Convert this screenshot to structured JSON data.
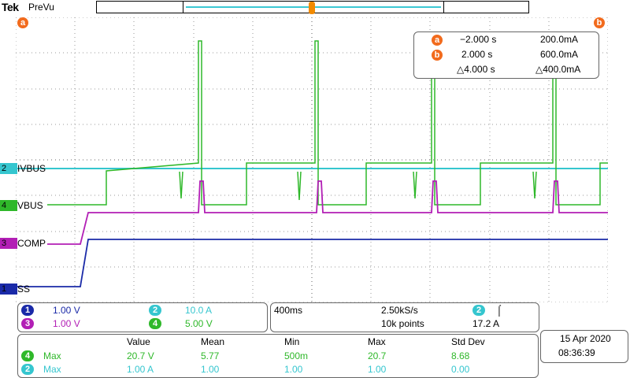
{
  "header": {
    "brand": "Tek",
    "mode": "PreVu"
  },
  "cursors": {
    "a_badge": "a",
    "b_badge": "b",
    "a_time": "−2.000 s",
    "a_value": "200.0mA",
    "b_time": "2.000 s",
    "b_value": "600.0mA",
    "delta_time": "△4.000 s",
    "delta_value": "△400.0mA"
  },
  "channels": [
    {
      "number": "2",
      "label": "IVBUS",
      "color": "#35c6cf",
      "scale": "10.0 A"
    },
    {
      "number": "4",
      "label": "VBUS",
      "color": "#2fb82a",
      "scale": "5.00 V"
    },
    {
      "number": "3",
      "label": "COMP",
      "color": "#b21fb5",
      "scale": "1.00 V"
    },
    {
      "number": "1",
      "label": "SS",
      "color": "#1a2aa8",
      "scale": "1.00 V"
    }
  ],
  "timebase": {
    "scale": "400ms",
    "sample_rate": "2.50kS/s",
    "record_length": "10k points",
    "trigger_channel": "2",
    "trigger_slope_icon": "rising-edge-icon",
    "trigger_slope_glyph": "⌠",
    "trigger_level": "17.2 A"
  },
  "measurements": {
    "headers": [
      "Value",
      "Mean",
      "Min",
      "Max",
      "Std Dev"
    ],
    "rows": [
      {
        "channel": "4",
        "type": "Max",
        "value": "20.7 V",
        "mean": "5.77",
        "min": "500m",
        "max": "20.7",
        "std": "8.68"
      },
      {
        "channel": "2",
        "type": "Max",
        "value": "1.00 A",
        "mean": "1.00",
        "min": "1.00",
        "max": "1.00",
        "std": "0.00"
      }
    ]
  },
  "datetime": {
    "date": "15 Apr  2020",
    "time": "08:36:39"
  }
}
